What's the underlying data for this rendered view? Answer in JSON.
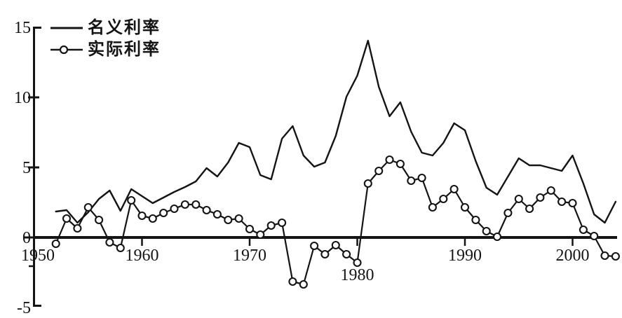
{
  "chart_data": {
    "type": "line",
    "title": "",
    "xlabel": "",
    "ylabel": "",
    "x_years": [
      1952,
      1953,
      1954,
      1955,
      1956,
      1957,
      1958,
      1959,
      1960,
      1961,
      1962,
      1963,
      1964,
      1965,
      1966,
      1967,
      1968,
      1969,
      1970,
      1971,
      1972,
      1973,
      1974,
      1975,
      1976,
      1977,
      1978,
      1979,
      1980,
      1981,
      1982,
      1983,
      1984,
      1985,
      1986,
      1987,
      1988,
      1989,
      1990,
      1991,
      1992,
      1993,
      1994,
      1995,
      1996,
      1997,
      1998,
      1999,
      2000,
      2001,
      2002,
      2003,
      2004
    ],
    "series": [
      {
        "name": "名义利率",
        "marker": "none",
        "values": [
          1.8,
          1.9,
          1.0,
          1.75,
          2.7,
          3.3,
          1.85,
          3.4,
          2.9,
          2.4,
          2.8,
          3.2,
          3.55,
          3.95,
          4.9,
          4.3,
          5.3,
          6.7,
          6.4,
          4.4,
          4.1,
          7.0,
          7.9,
          5.8,
          5.0,
          5.3,
          7.2,
          10.0,
          11.5,
          14.0,
          10.7,
          8.6,
          9.6,
          7.5,
          6.0,
          5.8,
          6.7,
          8.1,
          7.6,
          5.4,
          3.5,
          3.0,
          4.3,
          5.6,
          5.1,
          5.1,
          4.9,
          4.7,
          5.8,
          3.8,
          1.6,
          1.0,
          2.5
        ]
      },
      {
        "name": "实际利率",
        "marker": "open-circle",
        "values": [
          -0.5,
          1.3,
          0.6,
          2.1,
          1.2,
          -0.4,
          -0.8,
          2.6,
          1.5,
          1.3,
          1.7,
          2.0,
          2.3,
          2.3,
          1.9,
          1.6,
          1.2,
          1.3,
          0.55,
          0.15,
          0.8,
          1.0,
          -3.2,
          -3.4,
          -0.65,
          -1.25,
          -0.6,
          -1.25,
          -1.85,
          3.8,
          4.7,
          5.5,
          5.2,
          4.0,
          4.2,
          2.1,
          2.7,
          3.4,
          2.1,
          1.2,
          0.4,
          0.0,
          1.7,
          2.7,
          2.0,
          2.8,
          3.3,
          2.5,
          2.4,
          0.5,
          0.05,
          -1.35,
          -1.4
        ]
      }
    ],
    "ylim": [
      -5,
      15
    ],
    "xlim": [
      1950,
      2004
    ],
    "yticks": [
      {
        "value": 15,
        "label": "15"
      },
      {
        "value": 10,
        "label": "10"
      },
      {
        "value": 5,
        "label": "5"
      },
      {
        "value": 0,
        "label": "0"
      },
      {
        "value": -5,
        "label": "-5"
      }
    ],
    "y_minor_ticks": [
      -2.1
    ],
    "xticks": [
      {
        "value": 1950,
        "label": "1950",
        "low_label": false
      },
      {
        "value": 1960,
        "label": "1960",
        "low_label": false
      },
      {
        "value": 1970,
        "label": "1970",
        "low_label": false
      },
      {
        "value": 1980,
        "label": "1980",
        "low_label": true
      },
      {
        "value": 1990,
        "label": "1990",
        "low_label": false
      },
      {
        "value": 2000,
        "label": "2000",
        "low_label": false
      }
    ],
    "grid": false,
    "legend_position": "top-left",
    "line_color": "#141414",
    "marker_fill": "#ffffff",
    "background_color": "#ffffff"
  },
  "legend": {
    "items": [
      {
        "label": "名义利率",
        "sample": "solid-line"
      },
      {
        "label": "实际利率",
        "sample": "line-with-open-circle"
      }
    ]
  }
}
